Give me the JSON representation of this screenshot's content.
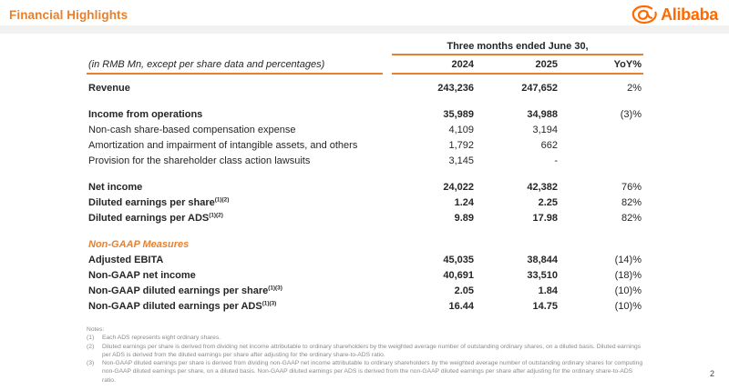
{
  "header": {
    "title": "Financial Highlights",
    "logo_text": "Alibaba"
  },
  "table": {
    "caption": "(in RMB Mn, except per share data and percentages)",
    "span_header": "Three months ended June 30,",
    "columns": [
      "2024",
      "2025",
      "YoY%"
    ],
    "rows": [
      {
        "label": "Revenue",
        "sup": "",
        "v2024": "243,236",
        "v2025": "247,652",
        "yoy": "2%",
        "style": "bold",
        "gap_before": false
      },
      {
        "label": "Income from operations",
        "sup": "",
        "v2024": "35,989",
        "v2025": "34,988",
        "yoy": "(3)%",
        "style": "bold",
        "gap_before": true
      },
      {
        "label": "Non-cash share-based compensation expense",
        "sup": "",
        "v2024": "4,109",
        "v2025": "3,194",
        "yoy": "",
        "style": "regular",
        "gap_before": false
      },
      {
        "label": "Amortization and impairment of intangible assets, and others",
        "sup": "",
        "v2024": "1,792",
        "v2025": "662",
        "yoy": "",
        "style": "regular",
        "gap_before": false
      },
      {
        "label": "Provision for the shareholder class action lawsuits",
        "sup": "",
        "v2024": "3,145",
        "v2025": "-",
        "yoy": "",
        "style": "regular",
        "gap_before": false
      },
      {
        "label": "Net income",
        "sup": "",
        "v2024": "24,022",
        "v2025": "42,382",
        "yoy": "76%",
        "style": "bold",
        "gap_before": true
      },
      {
        "label": "Diluted earnings per share",
        "sup": "(1)(2)",
        "v2024": "1.24",
        "v2025": "2.25",
        "yoy": "82%",
        "style": "bold",
        "gap_before": false
      },
      {
        "label": "Diluted earnings per ADS",
        "sup": "(1)(2)",
        "v2024": "9.89",
        "v2025": "17.98",
        "yoy": "82%",
        "style": "bold",
        "gap_before": false
      },
      {
        "label": "Non-GAAP Measures",
        "sup": "",
        "v2024": "",
        "v2025": "",
        "yoy": "",
        "style": "section",
        "gap_before": true
      },
      {
        "label": "Adjusted EBITA",
        "sup": "",
        "v2024": "45,035",
        "v2025": "38,844",
        "yoy": "(14)%",
        "style": "bold",
        "gap_before": false
      },
      {
        "label": "Non-GAAP net income",
        "sup": "",
        "v2024": "40,691",
        "v2025": "33,510",
        "yoy": "(18)%",
        "style": "bold",
        "gap_before": false
      },
      {
        "label": "Non-GAAP diluted earnings per share",
        "sup": "(1)(3)",
        "v2024": "2.05",
        "v2025": "1.84",
        "yoy": "(10)%",
        "style": "bold",
        "gap_before": false
      },
      {
        "label": "Non-GAAP diluted earnings per ADS",
        "sup": "(1)(3)",
        "v2024": "16.44",
        "v2025": "14.75",
        "yoy": "(10)%",
        "style": "bold",
        "gap_before": false
      }
    ]
  },
  "notes": {
    "heading": "Notes:",
    "items": [
      {
        "num": "(1)",
        "text": "Each ADS represents eight ordinary shares."
      },
      {
        "num": "(2)",
        "text": "Diluted earnings per share is derived from dividing net income attributable to ordinary shareholders by the weighted average number of outstanding ordinary shares, on a diluted basis. Diluted earnings per ADS is derived from the diluted earnings per share after adjusting for the ordinary share-to-ADS ratio."
      },
      {
        "num": "(3)",
        "text": "Non-GAAP diluted earnings per share is derived from dividing non-GAAP net income attributable to ordinary shareholders by the weighted average number of outstanding ordinary shares for computing non-GAAP diluted earnings per share, on a diluted basis. Non-GAAP diluted earnings per ADS is derived from the non-GAAP diluted earnings per share after adjusting for the ordinary share-to-ADS ratio."
      }
    ]
  },
  "page_number": "2",
  "colors": {
    "accent_orange": "#E8802D",
    "brand_orange": "#FF6A00",
    "notes_gray": "#8A8A8A",
    "divider_gray": "#F1F1EF"
  }
}
